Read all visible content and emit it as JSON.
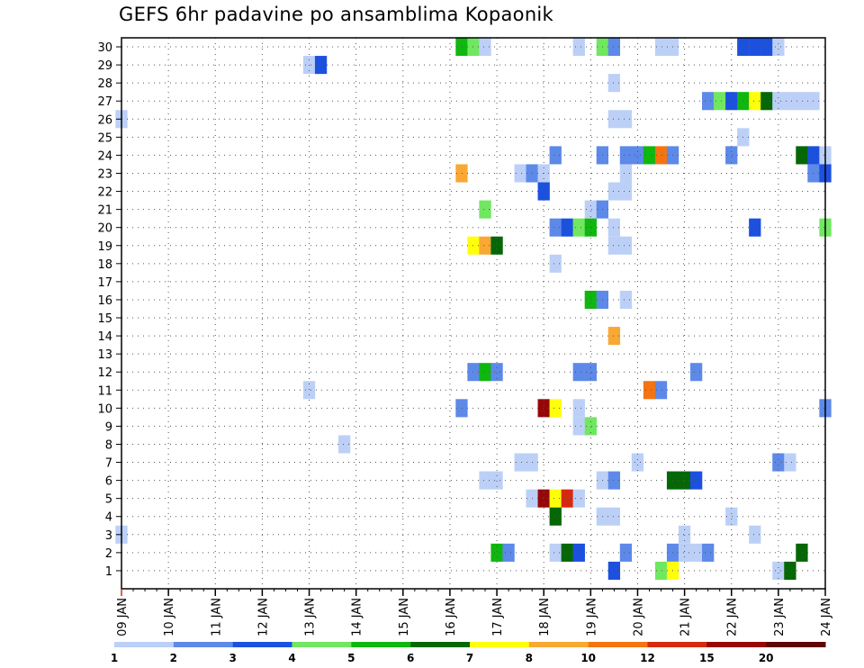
{
  "chart_data": {
    "type": "heatmap",
    "title": "GEFS 6hr padavine po ansamblima Kopaonik",
    "xlabel": "",
    "ylabel": "",
    "x_tick_labels": [
      "09 JAN",
      "10 JAN",
      "11 JAN",
      "12 JAN",
      "13 JAN",
      "14 JAN",
      "15 JAN",
      "16 JAN",
      "17 JAN",
      "18 JAN",
      "19 JAN",
      "20 JAN",
      "21 JAN",
      "22 JAN",
      "23 JAN",
      "24 JAN"
    ],
    "x_range": [
      0,
      60
    ],
    "x_unit": "6-hour steps from 09 JAN",
    "y_tick_labels": [
      1,
      2,
      3,
      4,
      5,
      6,
      7,
      8,
      9,
      10,
      11,
      12,
      13,
      14,
      15,
      16,
      17,
      18,
      19,
      20,
      21,
      22,
      23,
      24,
      25,
      26,
      27,
      28,
      29,
      30
    ],
    "y_range": [
      0,
      30.5
    ],
    "grid": true,
    "colorbar": {
      "labels": [
        "1",
        "2",
        "3",
        "4",
        "5",
        "6",
        "7",
        "8",
        "10",
        "12",
        "15",
        "20"
      ],
      "colors": [
        "#bcd0f7",
        "#5d89e9",
        "#1c50de",
        "#70e760",
        "#0fb70f",
        "#056705",
        "#ffff0a",
        "#f9a833",
        "#f37410",
        "#d62a10",
        "#970707",
        "#5f0505"
      ]
    },
    "cells": [
      {
        "m": 30,
        "t": 29,
        "c": 5
      },
      {
        "m": 30,
        "t": 30,
        "c": 4
      },
      {
        "m": 30,
        "t": 31,
        "c": 1
      },
      {
        "m": 30,
        "t": 39,
        "c": 1
      },
      {
        "m": 30,
        "t": 41,
        "c": 4
      },
      {
        "m": 30,
        "t": 42,
        "c": 2
      },
      {
        "m": 30,
        "t": 46,
        "c": 1
      },
      {
        "m": 30,
        "t": 47,
        "c": 1
      },
      {
        "m": 30,
        "t": 53,
        "c": 3
      },
      {
        "m": 30,
        "t": 54,
        "c": 3
      },
      {
        "m": 30,
        "t": 55,
        "c": 3
      },
      {
        "m": 30,
        "t": 56,
        "c": 1
      },
      {
        "m": 29,
        "t": 16,
        "c": 1
      },
      {
        "m": 29,
        "t": 17,
        "c": 3
      },
      {
        "m": 28,
        "t": 42,
        "c": 1
      },
      {
        "m": 27,
        "t": 50,
        "c": 2
      },
      {
        "m": 27,
        "t": 51,
        "c": 4
      },
      {
        "m": 27,
        "t": 52,
        "c": 3
      },
      {
        "m": 27,
        "t": 53,
        "c": 5
      },
      {
        "m": 27,
        "t": 54,
        "c": 7
      },
      {
        "m": 27,
        "t": 55,
        "c": 6
      },
      {
        "m": 27,
        "t": 56,
        "c": 1
      },
      {
        "m": 27,
        "t": 57,
        "c": 1
      },
      {
        "m": 27,
        "t": 58,
        "c": 1
      },
      {
        "m": 27,
        "t": 59,
        "c": 1
      },
      {
        "m": 26,
        "t": 0,
        "c": 1
      },
      {
        "m": 26,
        "t": 42,
        "c": 1
      },
      {
        "m": 26,
        "t": 43,
        "c": 1
      },
      {
        "m": 25,
        "t": 53,
        "c": 1
      },
      {
        "m": 24,
        "t": 37,
        "c": 2
      },
      {
        "m": 24,
        "t": 41,
        "c": 2
      },
      {
        "m": 24,
        "t": 43,
        "c": 2
      },
      {
        "m": 24,
        "t": 44,
        "c": 2
      },
      {
        "m": 24,
        "t": 45,
        "c": 5
      },
      {
        "m": 24,
        "t": 46,
        "c": 9
      },
      {
        "m": 24,
        "t": 47,
        "c": 2
      },
      {
        "m": 24,
        "t": 52,
        "c": 2
      },
      {
        "m": 24,
        "t": 58,
        "c": 6
      },
      {
        "m": 24,
        "t": 59,
        "c": 3
      },
      {
        "m": 24,
        "t": 60,
        "c": 1
      },
      {
        "m": 23,
        "t": 29,
        "c": 8
      },
      {
        "m": 23,
        "t": 34,
        "c": 1
      },
      {
        "m": 23,
        "t": 35,
        "c": 2
      },
      {
        "m": 23,
        "t": 36,
        "c": 1
      },
      {
        "m": 23,
        "t": 43,
        "c": 1
      },
      {
        "m": 23,
        "t": 59,
        "c": 2
      },
      {
        "m": 23,
        "t": 60,
        "c": 3
      },
      {
        "m": 22,
        "t": 36,
        "c": 3
      },
      {
        "m": 22,
        "t": 42,
        "c": 1
      },
      {
        "m": 22,
        "t": 43,
        "c": 1
      },
      {
        "m": 21,
        "t": 31,
        "c": 4
      },
      {
        "m": 21,
        "t": 40,
        "c": 1
      },
      {
        "m": 21,
        "t": 41,
        "c": 2
      },
      {
        "m": 20,
        "t": 37,
        "c": 2
      },
      {
        "m": 20,
        "t": 38,
        "c": 3
      },
      {
        "m": 20,
        "t": 39,
        "c": 4
      },
      {
        "m": 20,
        "t": 40,
        "c": 5
      },
      {
        "m": 20,
        "t": 42,
        "c": 1
      },
      {
        "m": 20,
        "t": 54,
        "c": 3
      },
      {
        "m": 20,
        "t": 60,
        "c": 4
      },
      {
        "m": 19,
        "t": 30,
        "c": 7
      },
      {
        "m": 19,
        "t": 31,
        "c": 8
      },
      {
        "m": 19,
        "t": 32,
        "c": 6
      },
      {
        "m": 19,
        "t": 42,
        "c": 1
      },
      {
        "m": 19,
        "t": 43,
        "c": 1
      },
      {
        "m": 18,
        "t": 37,
        "c": 1
      },
      {
        "m": 16,
        "t": 40,
        "c": 5
      },
      {
        "m": 16,
        "t": 41,
        "c": 2
      },
      {
        "m": 16,
        "t": 43,
        "c": 1
      },
      {
        "m": 14,
        "t": 42,
        "c": 8
      },
      {
        "m": 12,
        "t": 30,
        "c": 2
      },
      {
        "m": 12,
        "t": 31,
        "c": 5
      },
      {
        "m": 12,
        "t": 32,
        "c": 2
      },
      {
        "m": 12,
        "t": 39,
        "c": 2
      },
      {
        "m": 12,
        "t": 40,
        "c": 2
      },
      {
        "m": 12,
        "t": 49,
        "c": 2
      },
      {
        "m": 11,
        "t": 16,
        "c": 1
      },
      {
        "m": 11,
        "t": 45,
        "c": 9
      },
      {
        "m": 11,
        "t": 46,
        "c": 2
      },
      {
        "m": 10,
        "t": 29,
        "c": 2
      },
      {
        "m": 10,
        "t": 36,
        "c": 11
      },
      {
        "m": 10,
        "t": 37,
        "c": 7
      },
      {
        "m": 10,
        "t": 39,
        "c": 1
      },
      {
        "m": 10,
        "t": 60,
        "c": 2
      },
      {
        "m": 9,
        "t": 39,
        "c": 1
      },
      {
        "m": 9,
        "t": 40,
        "c": 4
      },
      {
        "m": 8,
        "t": 19,
        "c": 1
      },
      {
        "m": 7,
        "t": 34,
        "c": 1
      },
      {
        "m": 7,
        "t": 35,
        "c": 1
      },
      {
        "m": 7,
        "t": 44,
        "c": 1
      },
      {
        "m": 7,
        "t": 56,
        "c": 2
      },
      {
        "m": 7,
        "t": 57,
        "c": 1
      },
      {
        "m": 6,
        "t": 31,
        "c": 1
      },
      {
        "m": 6,
        "t": 32,
        "c": 1
      },
      {
        "m": 6,
        "t": 41,
        "c": 1
      },
      {
        "m": 6,
        "t": 42,
        "c": 2
      },
      {
        "m": 6,
        "t": 47,
        "c": 6
      },
      {
        "m": 6,
        "t": 48,
        "c": 6
      },
      {
        "m": 6,
        "t": 49,
        "c": 3
      },
      {
        "m": 5,
        "t": 35,
        "c": 1
      },
      {
        "m": 5,
        "t": 36,
        "c": 11
      },
      {
        "m": 5,
        "t": 37,
        "c": 7
      },
      {
        "m": 5,
        "t": 38,
        "c": 10
      },
      {
        "m": 5,
        "t": 39,
        "c": 1
      },
      {
        "m": 4,
        "t": 37,
        "c": 6
      },
      {
        "m": 4,
        "t": 41,
        "c": 1
      },
      {
        "m": 4,
        "t": 42,
        "c": 1
      },
      {
        "m": 4,
        "t": 52,
        "c": 1
      },
      {
        "m": 3,
        "t": 0,
        "c": 1
      },
      {
        "m": 3,
        "t": 48,
        "c": 1
      },
      {
        "m": 3,
        "t": 54,
        "c": 1
      },
      {
        "m": 2,
        "t": 32,
        "c": 5
      },
      {
        "m": 2,
        "t": 33,
        "c": 2
      },
      {
        "m": 2,
        "t": 37,
        "c": 1
      },
      {
        "m": 2,
        "t": 38,
        "c": 6
      },
      {
        "m": 2,
        "t": 39,
        "c": 3
      },
      {
        "m": 2,
        "t": 43,
        "c": 2
      },
      {
        "m": 2,
        "t": 47,
        "c": 2
      },
      {
        "m": 2,
        "t": 48,
        "c": 1
      },
      {
        "m": 2,
        "t": 49,
        "c": 1
      },
      {
        "m": 2,
        "t": 50,
        "c": 2
      },
      {
        "m": 2,
        "t": 58,
        "c": 6
      },
      {
        "m": 1,
        "t": 42,
        "c": 3
      },
      {
        "m": 1,
        "t": 46,
        "c": 4
      },
      {
        "m": 1,
        "t": 47,
        "c": 7
      },
      {
        "m": 1,
        "t": 56,
        "c": 1
      },
      {
        "m": 1,
        "t": 57,
        "c": 6
      }
    ]
  }
}
